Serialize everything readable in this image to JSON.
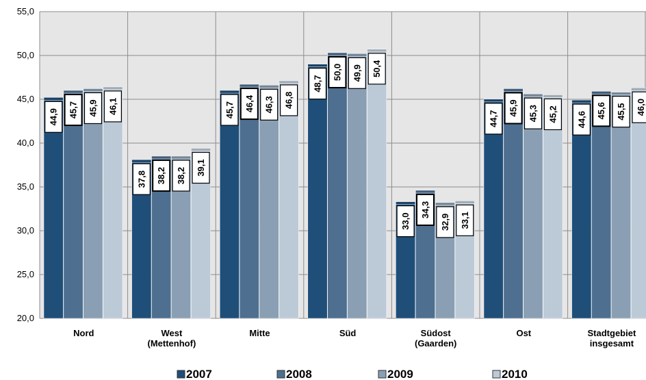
{
  "chart_data": {
    "type": "bar",
    "categories": [
      [
        "Nord"
      ],
      [
        "West",
        "(Mettenhof)"
      ],
      [
        "Mitte"
      ],
      [
        "Süd"
      ],
      [
        "Südost",
        "(Gaarden)"
      ],
      [
        "Ost"
      ],
      [
        "Stadtgebiet",
        "insgesamt"
      ]
    ],
    "series": [
      {
        "name": "2007",
        "color": "#1f4e79",
        "values": [
          44.9,
          37.8,
          45.7,
          48.7,
          33.0,
          44.7,
          44.6
        ],
        "labels": [
          "44,9",
          "37,8",
          "45,7",
          "48,7",
          "33,0",
          "44,7",
          "44,6"
        ]
      },
      {
        "name": "2008",
        "color": "#4e6f8f",
        "values": [
          45.7,
          38.2,
          46.4,
          50.0,
          34.3,
          45.9,
          45.6
        ],
        "labels": [
          "45,7",
          "38,2",
          "46,4",
          "50,0",
          "34,3",
          "45,9",
          "45,6"
        ]
      },
      {
        "name": "2009",
        "color": "#8a9fb4",
        "values": [
          45.9,
          38.2,
          46.3,
          49.9,
          32.9,
          45.3,
          45.5
        ],
        "labels": [
          "45,9",
          "38,2",
          "46,3",
          "49,9",
          "32,9",
          "45,3",
          "45,5"
        ]
      },
      {
        "name": "2010",
        "color": "#bccad8",
        "values": [
          46.1,
          39.1,
          46.8,
          50.4,
          33.1,
          45.2,
          46.0
        ],
        "labels": [
          "46,1",
          "39,1",
          "46,8",
          "50,4",
          "33,1",
          "45,2",
          "46,0"
        ]
      }
    ],
    "yticks": [
      "20,0",
      "25,0",
      "30,0",
      "35,0",
      "40,0",
      "45,0",
      "50,0",
      "55,0"
    ],
    "ylim": [
      20,
      55
    ],
    "grid": true,
    "legend_position": "bottom"
  }
}
